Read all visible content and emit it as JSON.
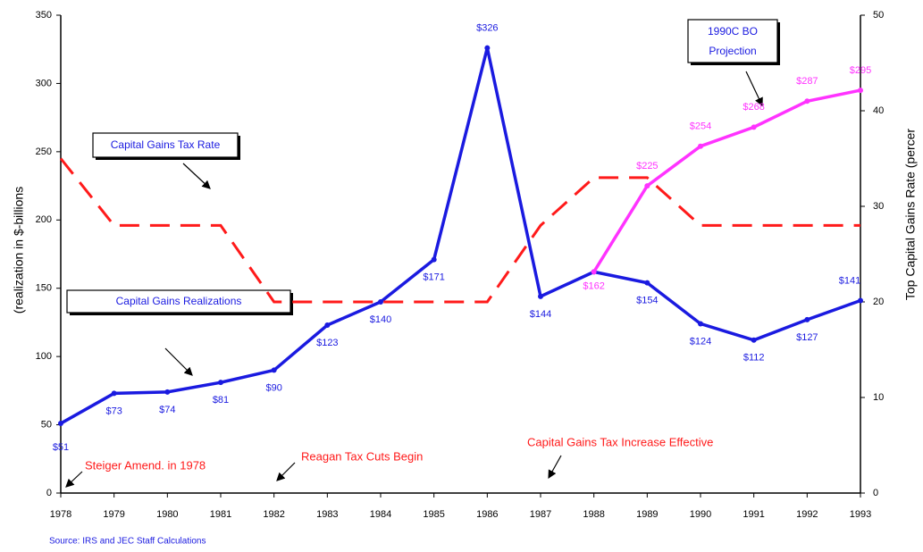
{
  "chart_data": {
    "type": "line",
    "categories": [
      "1978",
      "1979",
      "1980",
      "1981",
      "1982",
      "1983",
      "1984",
      "1985",
      "1986",
      "1987",
      "1988",
      "1989",
      "1990",
      "1991",
      "1992",
      "1993"
    ],
    "series": [
      {
        "name": "Capital Gains Realizations",
        "color": "#1a1ae0",
        "axis": "y",
        "dashed": false,
        "values": [
          51,
          73,
          74,
          81,
          90,
          123,
          140,
          171,
          326,
          144,
          162,
          154,
          124,
          112,
          127,
          141
        ],
        "value_labels": [
          "$51",
          "$73",
          "$74",
          "$81",
          "$90",
          "$123",
          "$140",
          "$171",
          "$326",
          "$144",
          null,
          "$154",
          "$124",
          "$112",
          "$127",
          "$141"
        ]
      },
      {
        "name": "1990CBO Projection",
        "color": "#ff33ff",
        "axis": "y",
        "dashed": false,
        "values": [
          null,
          null,
          null,
          null,
          null,
          null,
          null,
          null,
          null,
          null,
          162,
          225,
          254,
          268,
          287,
          295
        ],
        "value_labels": [
          null,
          null,
          null,
          null,
          null,
          null,
          null,
          null,
          null,
          null,
          "$162",
          "$225",
          "$254",
          "$268",
          "$287",
          "$295"
        ]
      },
      {
        "name": "Capital Gains Tax Rate",
        "color": "#ff1a1a",
        "axis": "y2",
        "dashed": true,
        "values": [
          35,
          28,
          28,
          28,
          20,
          20,
          20,
          20,
          20,
          28,
          33,
          33,
          28,
          28,
          28,
          28
        ]
      }
    ],
    "ylim": [
      0,
      350
    ],
    "yticks": [
      0,
      50,
      100,
      150,
      200,
      250,
      300,
      350
    ],
    "y2lim": [
      0,
      50
    ],
    "y2ticks": [
      0,
      10,
      20,
      30,
      40,
      50
    ],
    "ylabel": "(realization in $-billions",
    "y2label": "Top Capital Gains Rate (percer",
    "box_labels": {
      "tax_rate": "Capital Gains Tax Rate",
      "realizations": "Capital Gains Realizations",
      "cbo_1": "1990C BO",
      "cbo_2": "Projection"
    },
    "annotations": {
      "steiger": "Steiger Amend. in 1978",
      "reagan": "Reagan Tax Cuts Begin",
      "increase": "Capital Gains Tax Increase Effective"
    },
    "source": "Source:  IRS and JEC Staff Calculations"
  }
}
